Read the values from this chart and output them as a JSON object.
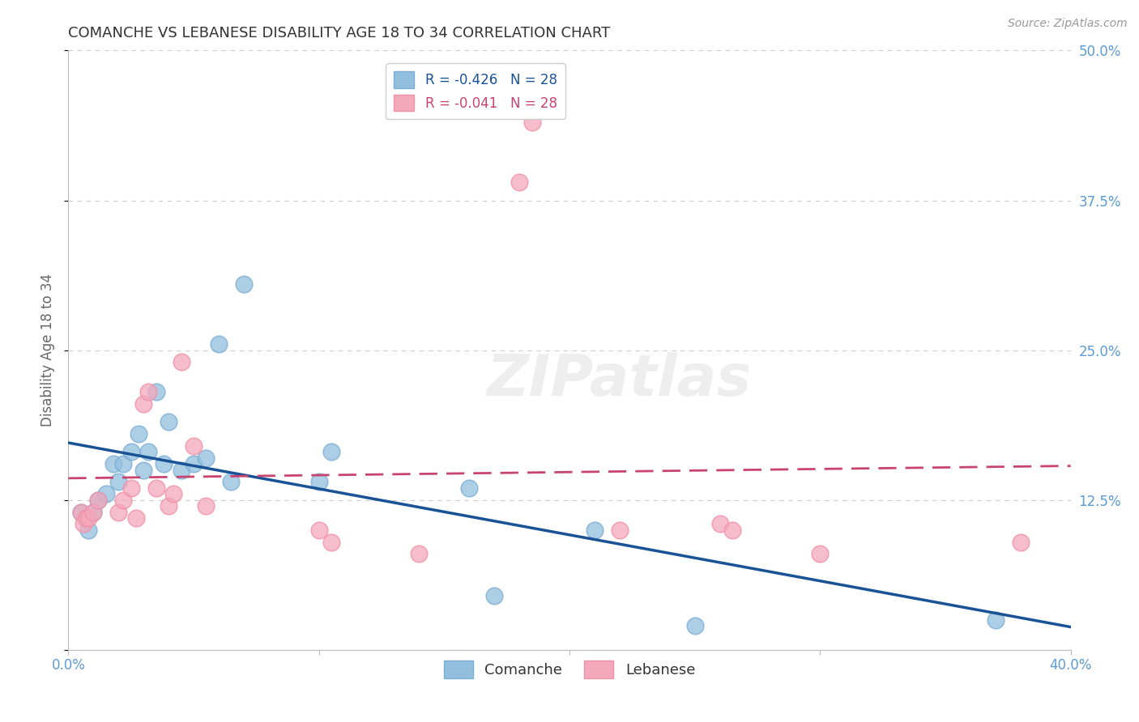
{
  "title": "COMANCHE VS LEBANESE DISABILITY AGE 18 TO 34 CORRELATION CHART",
  "source": "Source: ZipAtlas.com",
  "ylabel": "Disability Age 18 to 34",
  "xlim": [
    0.0,
    0.4
  ],
  "ylim": [
    0.0,
    0.5
  ],
  "xticks": [
    0.0,
    0.1,
    0.2,
    0.3,
    0.4
  ],
  "yticks": [
    0.0,
    0.125,
    0.25,
    0.375,
    0.5
  ],
  "xtick_labels": [
    "0.0%",
    "",
    "",
    "",
    "40.0%"
  ],
  "ytick_labels": [
    "",
    "12.5%",
    "25.0%",
    "37.5%",
    "50.0%"
  ],
  "comanche_R": "-0.426",
  "comanche_N": "28",
  "lebanese_R": "-0.041",
  "lebanese_N": "28",
  "comanche_color": "#92bfde",
  "lebanese_color": "#f4a8bb",
  "comanche_edge_color": "#7aadd4",
  "lebanese_edge_color": "#f090a8",
  "comanche_line_color": "#1a5296",
  "lebanese_line_color": "#c8446e",
  "background_color": "#ffffff",
  "grid_color": "#cccccc",
  "title_color": "#333333",
  "axis_label_color": "#5b9bd5",
  "comanche_x": [
    0.005,
    0.008,
    0.01,
    0.012,
    0.015,
    0.018,
    0.02,
    0.022,
    0.025,
    0.028,
    0.03,
    0.032,
    0.035,
    0.038,
    0.04,
    0.045,
    0.05,
    0.055,
    0.06,
    0.065,
    0.07,
    0.1,
    0.105,
    0.16,
    0.17,
    0.21,
    0.25,
    0.37
  ],
  "comanche_y": [
    0.115,
    0.1,
    0.115,
    0.125,
    0.13,
    0.155,
    0.14,
    0.155,
    0.165,
    0.18,
    0.15,
    0.165,
    0.215,
    0.155,
    0.19,
    0.15,
    0.155,
    0.16,
    0.255,
    0.14,
    0.305,
    0.14,
    0.165,
    0.135,
    0.045,
    0.1,
    0.02,
    0.025
  ],
  "lebanese_x": [
    0.005,
    0.006,
    0.007,
    0.008,
    0.01,
    0.012,
    0.02,
    0.022,
    0.025,
    0.027,
    0.03,
    0.032,
    0.035,
    0.04,
    0.042,
    0.045,
    0.05,
    0.055,
    0.1,
    0.105,
    0.14,
    0.18,
    0.22,
    0.26,
    0.265,
    0.3,
    0.38,
    0.185
  ],
  "lebanese_y": [
    0.115,
    0.105,
    0.11,
    0.11,
    0.115,
    0.125,
    0.115,
    0.125,
    0.135,
    0.11,
    0.205,
    0.215,
    0.135,
    0.12,
    0.13,
    0.24,
    0.17,
    0.12,
    0.1,
    0.09,
    0.08,
    0.39,
    0.1,
    0.105,
    0.1,
    0.08,
    0.09,
    0.44
  ]
}
